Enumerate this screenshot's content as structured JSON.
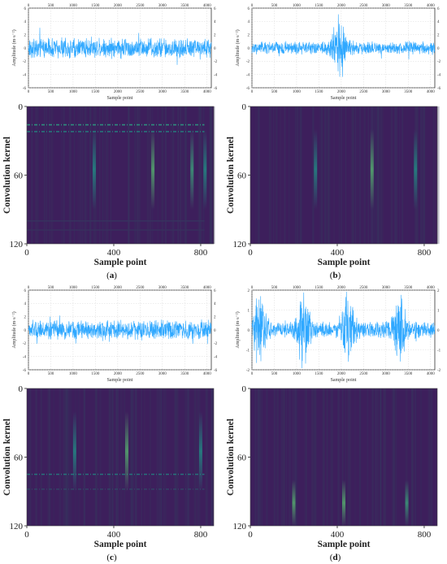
{
  "chart_data": [
    {
      "panel_label": "a",
      "signal": {
        "type": "line",
        "xlabel": "Sample point",
        "ylabel": "Amplitude (m·s⁻²)",
        "xlim": [
          0,
          4096
        ],
        "ylim": [
          -6,
          6
        ],
        "xticks": [
          0,
          500,
          1000,
          1500,
          2000,
          2500,
          3000,
          3500,
          4000
        ],
        "yticks": [
          -6,
          -4,
          -2,
          0,
          2,
          4,
          6
        ],
        "grid": true,
        "color": "#2fa8ff",
        "base_amplitude": 1.6,
        "bursts": []
      },
      "heatmap": {
        "type": "heatmap",
        "xlabel": "Sample point",
        "ylabel": "Convolution kernel",
        "xlim": [
          0,
          860
        ],
        "ylim": [
          0,
          120
        ],
        "xticks": [
          0,
          400,
          800
        ],
        "yticks": [
          0,
          60,
          120
        ],
        "colormap": [
          "#3d1f5c",
          "#37345f",
          "#1f9488",
          "#66c56a",
          "#b9d64a"
        ],
        "rows": [
          {
            "kernel": 16,
            "intensity": 0.55,
            "dashed": true
          },
          {
            "kernel": 22,
            "intensity": 0.45,
            "dashed": true
          },
          {
            "kernel": 100,
            "intensity": 0.25,
            "dashed": false
          },
          {
            "kernel": 108,
            "intensity": 0.2,
            "dashed": false
          }
        ],
        "columns": [
          {
            "sample": 310,
            "intensity": 0.35
          },
          {
            "sample": 580,
            "intensity": 0.55
          },
          {
            "sample": 760,
            "intensity": 0.45
          },
          {
            "sample": 820,
            "intensity": 0.35
          }
        ]
      }
    },
    {
      "panel_label": "b",
      "signal": {
        "type": "line",
        "xlabel": "Sample point",
        "ylabel": "Amplitude (m·s⁻²)",
        "xlim": [
          0,
          4096
        ],
        "ylim": [
          -6,
          6
        ],
        "xticks": [
          0,
          500,
          1000,
          1500,
          2000,
          2500,
          3000,
          3500,
          4000
        ],
        "yticks": [
          -6,
          -4,
          -2,
          0,
          2,
          4,
          6
        ],
        "grid": true,
        "color": "#2fa8ff",
        "base_amplitude": 1.0,
        "bursts": [
          {
            "center": 1950,
            "width": 200,
            "amplitude": 4.5
          }
        ]
      },
      "heatmap": {
        "type": "heatmap",
        "xlabel": "Sample point",
        "ylabel": "Convolution kernel",
        "xlim": [
          0,
          860
        ],
        "ylim": [
          0,
          120
        ],
        "xticks": [
          0,
          400,
          800
        ],
        "yticks": [
          0,
          60,
          120
        ],
        "colormap": [
          "#3d1f5c",
          "#37345f",
          "#1f9488",
          "#66c56a",
          "#b9d64a"
        ],
        "rows": [],
        "columns": [
          {
            "sample": 300,
            "intensity": 0.35
          },
          {
            "sample": 560,
            "intensity": 0.55
          },
          {
            "sample": 760,
            "intensity": 0.35
          }
        ]
      }
    },
    {
      "panel_label": "c",
      "signal": {
        "type": "line",
        "xlabel": "Sample point",
        "ylabel": "Amplitude (m·s⁻²)",
        "xlim": [
          0,
          4096
        ],
        "ylim": [
          -6,
          6
        ],
        "xticks": [
          0,
          500,
          1000,
          1500,
          2000,
          2500,
          3000,
          3500,
          4000
        ],
        "yticks": [
          -6,
          -4,
          -2,
          0,
          2,
          4,
          6
        ],
        "grid": true,
        "color": "#2fa8ff",
        "base_amplitude": 1.5,
        "bursts": []
      },
      "heatmap": {
        "type": "heatmap",
        "xlabel": "Sample point",
        "ylabel": "Convolution kernel",
        "xlim": [
          0,
          860
        ],
        "ylim": [
          0,
          120
        ],
        "xticks": [
          0,
          400,
          800
        ],
        "yticks": [
          0,
          60,
          120
        ],
        "colormap": [
          "#3d1f5c",
          "#37345f",
          "#1f9488",
          "#66c56a",
          "#b9d64a"
        ],
        "rows": [
          {
            "kernel": 75,
            "intensity": 0.45,
            "dashed": true
          },
          {
            "kernel": 88,
            "intensity": 0.3,
            "dashed": true
          }
        ],
        "columns": [
          {
            "sample": 220,
            "intensity": 0.35
          },
          {
            "sample": 460,
            "intensity": 0.55
          },
          {
            "sample": 800,
            "intensity": 0.35
          }
        ]
      }
    },
    {
      "panel_label": "d",
      "signal": {
        "type": "line",
        "xlabel": "Sample point",
        "ylabel": "Amplitude (m·s⁻²)",
        "xlim": [
          0,
          4096
        ],
        "ylim": [
          -2,
          2
        ],
        "xticks": [
          0,
          500,
          1000,
          1500,
          2000,
          2500,
          3000,
          3500,
          4000
        ],
        "yticks": [
          -2,
          -1,
          0,
          1,
          2
        ],
        "grid": true,
        "color": "#2fa8ff",
        "base_amplitude": 0.4,
        "bursts": [
          {
            "center": 180,
            "width": 200,
            "amplitude": 1.6
          },
          {
            "center": 1150,
            "width": 200,
            "amplitude": 1.6
          },
          {
            "center": 2150,
            "width": 200,
            "amplitude": 1.6
          },
          {
            "center": 3300,
            "width": 200,
            "amplitude": 1.6
          }
        ]
      },
      "heatmap": {
        "type": "heatmap",
        "xlabel": "Sample point",
        "ylabel": "Convolution kernel",
        "xlim": [
          0,
          860
        ],
        "ylim": [
          0,
          120
        ],
        "xticks": [
          0,
          400,
          800
        ],
        "yticks": [
          0,
          60,
          120
        ],
        "colormap": [
          "#3d1f5c",
          "#37345f",
          "#1f9488",
          "#66c56a",
          "#b9d64a"
        ],
        "rows": [],
        "columns": [
          {
            "sample": 200,
            "intensity": 0.55,
            "kernel_from": 80
          },
          {
            "sample": 430,
            "intensity": 0.55,
            "kernel_from": 80
          },
          {
            "sample": 720,
            "intensity": 0.45,
            "kernel_from": 80
          }
        ]
      }
    }
  ]
}
